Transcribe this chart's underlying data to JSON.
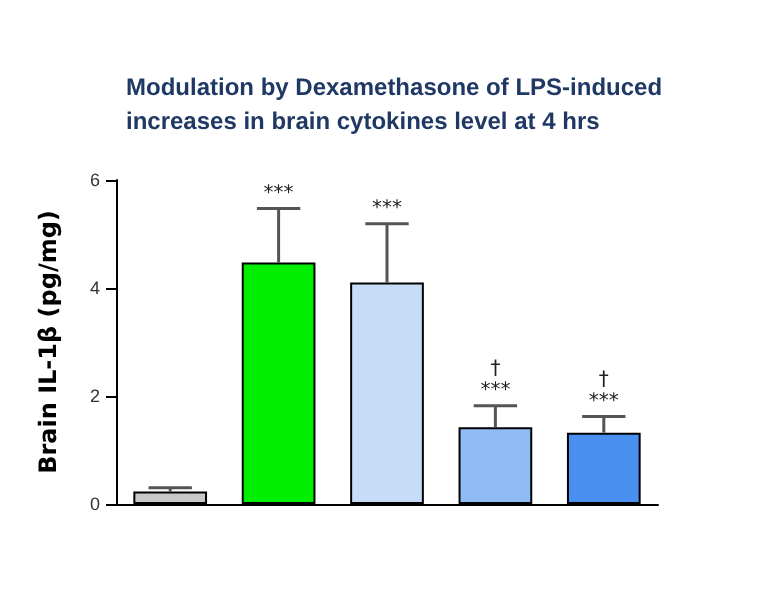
{
  "chart_data": {
    "type": "bar",
    "title": "Modulation by Dexamethasone of LPS-induced\nincreases in brain cytokines level at 4 hrs",
    "ylabel": "Brain IL-1β (pg/mg)",
    "categories": [
      null,
      null,
      null,
      null,
      null
    ],
    "values": [
      0.23,
      4.47,
      4.1,
      1.42,
      1.32
    ],
    "colors": [
      "#c8c8c8",
      "#00ee00",
      "#c6dcf7",
      "#8fbcf5",
      "#4a90f0"
    ],
    "errors": [
      [
        0.23,
        0.3
      ],
      [
        4.47,
        5.47
      ],
      [
        4.1,
        5.19
      ],
      [
        1.42,
        1.82
      ],
      [
        1.32,
        1.62
      ]
    ],
    "value_labels": [
      null,
      "***",
      "***",
      "†\n***",
      "†\n***"
    ],
    "ylim": [
      0,
      6
    ],
    "yticks": [
      0,
      2,
      4,
      6
    ],
    "grid": false
  }
}
